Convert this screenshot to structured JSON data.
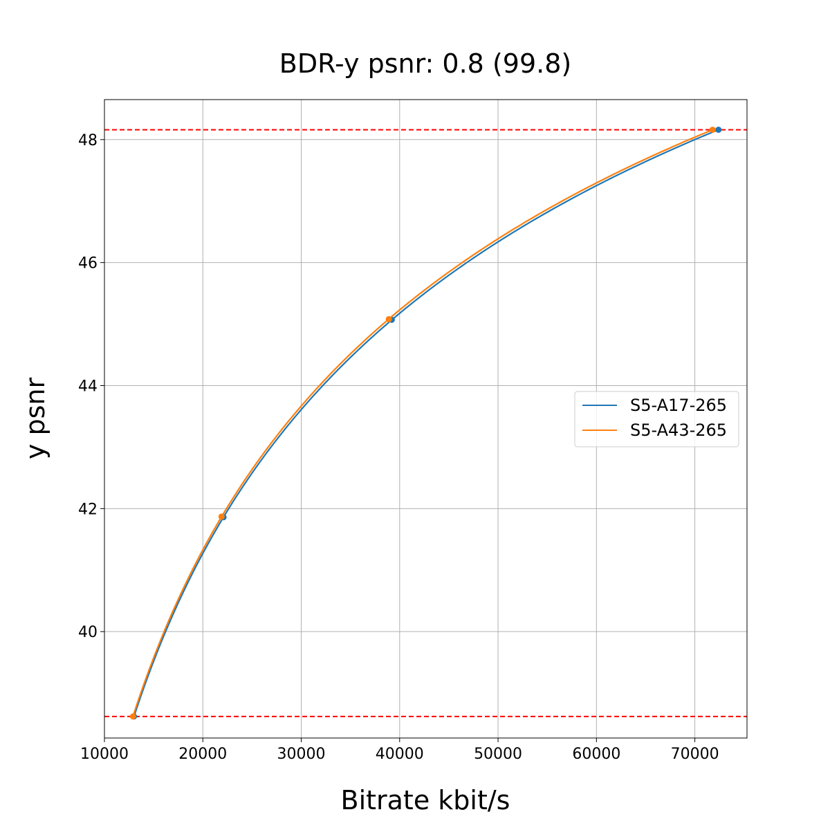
{
  "chart_data": {
    "type": "line",
    "title": "BDR-y psnr: 0.8 (99.8)",
    "xlabel": "Bitrate kbit/s",
    "ylabel": "y psnr",
    "xlim": [
      10000,
      75300
    ],
    "ylim": [
      38.27,
      48.65
    ],
    "x_ticks": [
      10000,
      20000,
      30000,
      40000,
      50000,
      60000,
      70000
    ],
    "y_ticks": [
      40,
      42,
      44,
      46,
      48
    ],
    "grid": true,
    "legend_position": "center-right",
    "series": [
      {
        "name": "S5-A17-265",
        "color": "#1f77b4",
        "points": [
          {
            "x": 13000,
            "y": 38.62
          },
          {
            "x": 22100,
            "y": 41.86
          },
          {
            "x": 39200,
            "y": 45.07
          },
          {
            "x": 72400,
            "y": 48.16
          }
        ]
      },
      {
        "name": "S5-A43-265",
        "color": "#ff7f0e",
        "points": [
          {
            "x": 12900,
            "y": 38.62
          },
          {
            "x": 21900,
            "y": 41.87
          },
          {
            "x": 38900,
            "y": 45.08
          },
          {
            "x": 71800,
            "y": 48.16
          }
        ]
      }
    ],
    "reference_lines": [
      {
        "axis": "y",
        "value": 48.16,
        "color": "#ff0000",
        "style": "dashed"
      },
      {
        "axis": "y",
        "value": 38.62,
        "color": "#ff0000",
        "style": "dashed"
      }
    ]
  }
}
